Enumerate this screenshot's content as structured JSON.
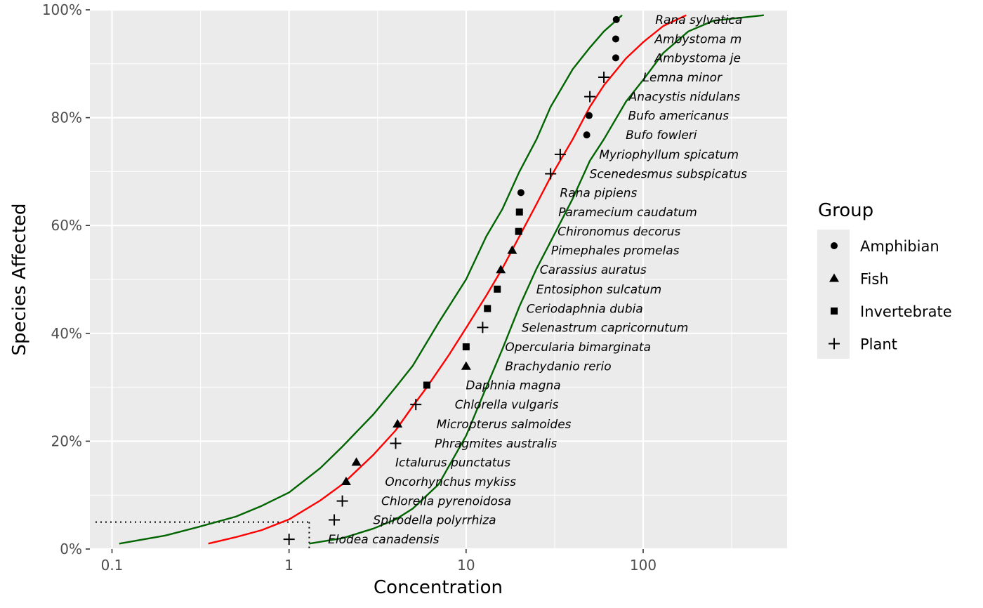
{
  "chart_data": {
    "type": "scatter",
    "xlabel": "Concentration",
    "ylabel": "Species Affected",
    "x_scale": "log10",
    "xlim": [
      0.075,
      650
    ],
    "ylim": [
      0,
      1
    ],
    "x_ticks": [
      {
        "value": 0.1,
        "label": "0.1"
      },
      {
        "value": 1,
        "label": "1"
      },
      {
        "value": 10,
        "label": "10"
      },
      {
        "value": 100,
        "label": "100"
      }
    ],
    "y_ticks": [
      {
        "value": 0,
        "label": "0%"
      },
      {
        "value": 0.2,
        "label": "20%"
      },
      {
        "value": 0.4,
        "label": "40%"
      },
      {
        "value": 0.6,
        "label": "60%"
      },
      {
        "value": 0.8,
        "label": "80%"
      },
      {
        "value": 1.0,
        "label": "100%"
      }
    ],
    "grid": true,
    "legend": {
      "title": "Group",
      "position": "right",
      "entries": [
        {
          "label": "Amphibian",
          "shape": "circle"
        },
        {
          "label": "Fish",
          "shape": "triangle"
        },
        {
          "label": "Invertebrate",
          "shape": "square"
        },
        {
          "label": "Plant",
          "shape": "plus"
        }
      ]
    },
    "points": [
      {
        "species": "Elodea canadensis",
        "group": "Plant",
        "x": 1.0,
        "y": 0.018
      },
      {
        "species": "Spirodella polyrrhiza",
        "group": "Plant",
        "x": 1.8,
        "y": 0.054
      },
      {
        "species": "Chlorella pyrenoidosa",
        "group": "Plant",
        "x": 2.0,
        "y": 0.089
      },
      {
        "species": "Oncorhynchus mykiss",
        "group": "Fish",
        "x": 2.1,
        "y": 0.125
      },
      {
        "species": "Ictalurus punctatus",
        "group": "Fish",
        "x": 2.4,
        "y": 0.161
      },
      {
        "species": "Phragmites australis",
        "group": "Plant",
        "x": 4.0,
        "y": 0.196
      },
      {
        "species": "Micropterus salmoides",
        "group": "Fish",
        "x": 4.1,
        "y": 0.232
      },
      {
        "species": "Chlorella vulgaris",
        "group": "Plant",
        "x": 5.2,
        "y": 0.268
      },
      {
        "species": "Daphnia magna",
        "group": "Invertebrate",
        "x": 6.0,
        "y": 0.304
      },
      {
        "species": "Brachydanio rerio",
        "group": "Fish",
        "x": 10.0,
        "y": 0.339
      },
      {
        "species": "Opercularia bimarginata",
        "group": "Invertebrate",
        "x": 10.0,
        "y": 0.375
      },
      {
        "species": "Selenastrum capricornutum",
        "group": "Plant",
        "x": 12.4,
        "y": 0.411
      },
      {
        "species": "Ceriodaphnia dubia",
        "group": "Invertebrate",
        "x": 13.2,
        "y": 0.446
      },
      {
        "species": "Entosiphon sulcatum",
        "group": "Invertebrate",
        "x": 15.0,
        "y": 0.482
      },
      {
        "species": "Carassius auratus",
        "group": "Fish",
        "x": 15.7,
        "y": 0.518
      },
      {
        "species": "Pimephales promelas",
        "group": "Fish",
        "x": 18.2,
        "y": 0.554
      },
      {
        "species": "Chironomus decorus",
        "group": "Invertebrate",
        "x": 19.8,
        "y": 0.589
      },
      {
        "species": "Paramecium caudatum",
        "group": "Invertebrate",
        "x": 20.0,
        "y": 0.625
      },
      {
        "species": "Rana pipiens",
        "group": "Amphibian",
        "x": 20.4,
        "y": 0.661
      },
      {
        "species": "Scenedesmus subspicatus",
        "group": "Plant",
        "x": 30.0,
        "y": 0.696
      },
      {
        "species": "Myriophyllum spicatum",
        "group": "Plant",
        "x": 34.0,
        "y": 0.732
      },
      {
        "species": "Bufo fowleri",
        "group": "Amphibian",
        "x": 48.0,
        "y": 0.768
      },
      {
        "species": "Bufo americanus",
        "group": "Amphibian",
        "x": 49.5,
        "y": 0.804
      },
      {
        "species": "Anacystis nidulans",
        "group": "Plant",
        "x": 50.0,
        "y": 0.839
      },
      {
        "species": "Lemna minor",
        "group": "Plant",
        "x": 60.0,
        "y": 0.875
      },
      {
        "species": "Ambystoma je",
        "group": "Amphibian",
        "x": 70.0,
        "y": 0.911
      },
      {
        "species": "Ambystoma m",
        "group": "Amphibian",
        "x": 70.0,
        "y": 0.946
      },
      {
        "species": "Rana sylvatica",
        "group": "Amphibian",
        "x": 70.5,
        "y": 0.982
      }
    ],
    "fit": {
      "color": "#ff0000",
      "points": [
        [
          0.35,
          0.01
        ],
        [
          0.5,
          0.022
        ],
        [
          0.7,
          0.035
        ],
        [
          1.0,
          0.055
        ],
        [
          1.5,
          0.09
        ],
        [
          2,
          0.12
        ],
        [
          3,
          0.175
        ],
        [
          4,
          0.22
        ],
        [
          5,
          0.265
        ],
        [
          6,
          0.3
        ],
        [
          8,
          0.36
        ],
        [
          10,
          0.41
        ],
        [
          13,
          0.47
        ],
        [
          16,
          0.52
        ],
        [
          20,
          0.58
        ],
        [
          25,
          0.64
        ],
        [
          30,
          0.69
        ],
        [
          40,
          0.76
        ],
        [
          50,
          0.82
        ],
        [
          60,
          0.86
        ],
        [
          80,
          0.91
        ],
        [
          100,
          0.94
        ],
        [
          130,
          0.97
        ],
        [
          175,
          0.99
        ]
      ]
    },
    "confidence_band": {
      "color": "#006400",
      "lower": [
        [
          1.3,
          0.01
        ],
        [
          2,
          0.02
        ],
        [
          3,
          0.038
        ],
        [
          4,
          0.055
        ],
        [
          5,
          0.075
        ],
        [
          7,
          0.12
        ],
        [
          10,
          0.21
        ],
        [
          13,
          0.3
        ],
        [
          16,
          0.37
        ],
        [
          20,
          0.45
        ],
        [
          25,
          0.52
        ],
        [
          30,
          0.57
        ],
        [
          40,
          0.65
        ],
        [
          50,
          0.72
        ],
        [
          60,
          0.76
        ],
        [
          80,
          0.83
        ],
        [
          100,
          0.87
        ],
        [
          130,
          0.92
        ],
        [
          180,
          0.96
        ],
        [
          250,
          0.98
        ],
        [
          480,
          0.99
        ]
      ],
      "upper": [
        [
          0.11,
          0.01
        ],
        [
          0.2,
          0.025
        ],
        [
          0.3,
          0.04
        ],
        [
          0.5,
          0.06
        ],
        [
          0.7,
          0.08
        ],
        [
          1,
          0.105
        ],
        [
          1.5,
          0.15
        ],
        [
          2,
          0.19
        ],
        [
          3,
          0.25
        ],
        [
          4,
          0.3
        ],
        [
          5,
          0.34
        ],
        [
          7,
          0.42
        ],
        [
          10,
          0.5
        ],
        [
          13,
          0.58
        ],
        [
          16,
          0.63
        ],
        [
          20,
          0.7
        ],
        [
          25,
          0.76
        ],
        [
          30,
          0.82
        ],
        [
          40,
          0.89
        ],
        [
          50,
          0.93
        ],
        [
          60,
          0.96
        ],
        [
          76,
          0.99
        ]
      ]
    },
    "hc5": {
      "x": 1.3,
      "y": 0.05
    }
  }
}
